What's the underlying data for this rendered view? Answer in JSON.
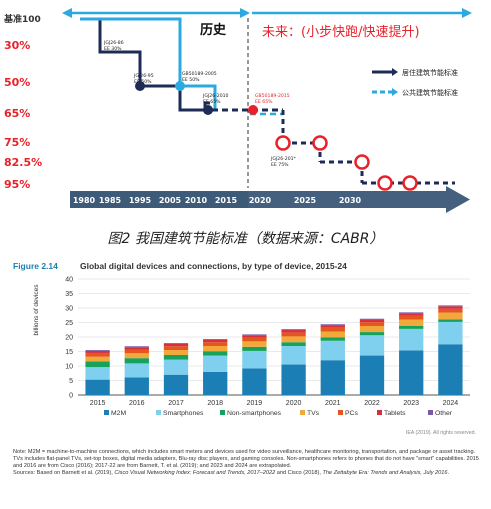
{
  "chart_data": [
    {
      "type": "line",
      "title": "",
      "level_labels": [
        "基准100",
        "30%",
        "50%",
        "65%",
        "75%",
        "82.5%",
        "95%"
      ],
      "level_colors": [
        "#333333",
        "#e8222a",
        "#e8222a",
        "#e8222a",
        "#e8222a",
        "#e8222a",
        "#e8222a"
      ],
      "x_ticks": [
        "1980",
        "1985",
        "1995",
        "2005",
        "2010",
        "2015",
        "2020",
        "2025",
        "2030"
      ],
      "history_label": "历史",
      "future_label": "未来：(小步快跑/快速提升)",
      "series": [
        {
          "name": "居住建筑节能标准",
          "color": "#1d2b57"
        },
        {
          "name": "公共建筑节能标准",
          "color": "#2ba9e0"
        }
      ],
      "standards": [
        {
          "code": "JGJ26-86",
          "ee": "EE 30%",
          "year": 1986,
          "level": "30%"
        },
        {
          "code": "JGJ26-95",
          "ee": "EE 50%",
          "year": 1995,
          "level": "50%"
        },
        {
          "code": "GB50189-2005",
          "ee": "EE 50%",
          "year": 2005,
          "level": "50%"
        },
        {
          "code": "JGJ26-2010",
          "ee": "EE 65%",
          "year": 2010,
          "level": "65%"
        },
        {
          "code": "GB50189-2015",
          "ee": "EE 65%",
          "year": 2015,
          "level": "65%"
        },
        {
          "code": "JGJ26-201*",
          "ee": "EE 75%",
          "year": 2020,
          "level": "75%"
        }
      ],
      "future_points": [
        {
          "year": 2019,
          "level": "65%"
        },
        {
          "year": 2024,
          "level": "75%"
        },
        {
          "year": 2027,
          "level": "82.5%"
        },
        {
          "year": 2031,
          "level": "95%"
        },
        {
          "year": 2034,
          "level": "95%"
        }
      ]
    },
    {
      "type": "bar",
      "stacked": true,
      "title": "Global digital devices and connections, by type of device, 2015-24",
      "figure_label": "Figure 2.14",
      "ylabel": "billions of devices",
      "ylim": [
        0,
        40
      ],
      "yticks": [
        0,
        5,
        10,
        15,
        20,
        25,
        30,
        35,
        40
      ],
      "grid": true,
      "legend": "bottom",
      "categories": [
        "2015",
        "2016",
        "2017",
        "2018",
        "2019",
        "2020",
        "2021",
        "2022",
        "2023",
        "2024"
      ],
      "series": [
        {
          "name": "M2M",
          "color": "#1b7fb5",
          "values": [
            5.3,
            6.1,
            7.0,
            8.0,
            9.2,
            10.5,
            12.0,
            13.6,
            15.4,
            17.5
          ]
        },
        {
          "name": "Smartphones",
          "color": "#7fd0ee",
          "values": [
            4.3,
            4.8,
            5.2,
            5.6,
            6.0,
            6.4,
            6.7,
            7.0,
            7.4,
            7.7
          ]
        },
        {
          "name": "Non-smartphones",
          "color": "#16a15c",
          "values": [
            2.0,
            1.8,
            1.6,
            1.5,
            1.4,
            1.3,
            1.2,
            1.1,
            1.0,
            0.9
          ]
        },
        {
          "name": "TVs",
          "color": "#f2a93b",
          "values": [
            1.6,
            1.7,
            1.7,
            1.8,
            1.9,
            2.0,
            2.0,
            2.1,
            2.2,
            2.3
          ]
        },
        {
          "name": "PCs",
          "color": "#e5561f",
          "values": [
            1.3,
            1.3,
            1.3,
            1.3,
            1.3,
            1.3,
            1.3,
            1.3,
            1.3,
            1.3
          ]
        },
        {
          "name": "Tablets",
          "color": "#d62f3d",
          "values": [
            0.7,
            0.8,
            0.8,
            0.8,
            0.8,
            0.9,
            0.9,
            0.9,
            0.9,
            0.9
          ]
        },
        {
          "name": "Other",
          "color": "#7a5aa6",
          "values": [
            0.3,
            0.3,
            0.3,
            0.3,
            0.3,
            0.3,
            0.3,
            0.3,
            0.3,
            0.3
          ]
        }
      ],
      "credit": "IEA (2019). All rights reserved."
    }
  ],
  "caption1": "图2 我国建筑节能标准（数据来源：CABR）",
  "note": {
    "main": "Note: M2M = machine-to-machine connections, which includes smart meters and devices used for video surveillance, healthcare monitoring, transportation, and package or asset tracking. TVs includes flat-panel TVs, set-top boxes, digital media adapters, Blu-ray disc players, and gaming consoles. Non-smartphones refers to phones that do not have \"smart\" capabilities. 2015 and 2016 are from Cisco (2016); 2017-22 are from Barnett, T. et al. (2019); and 2023 and 2024 are extrapolated.",
    "src_a": "Sources: Based on Barnett et al. (2019), ",
    "src_b": "Cisco Visual Networking Index: Forecast and Trends, 2017–2022",
    "src_c": " and Cisco (2018), ",
    "src_d": "The Zettabyte Era: Trends and Analysis, July 2016",
    "src_e": "."
  }
}
